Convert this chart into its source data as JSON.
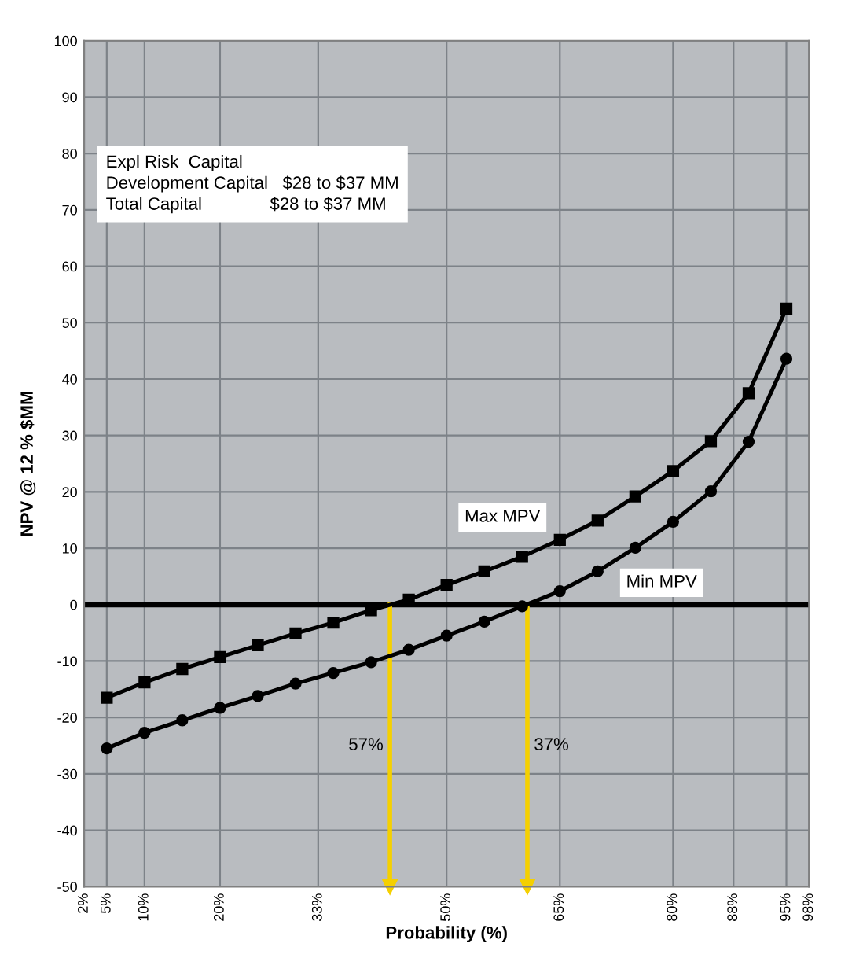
{
  "chart_data": {
    "type": "line",
    "xlabel": "Probability (%)",
    "ylabel": "NPV @ 12 % $MM",
    "xlim": [
      2,
      98
    ],
    "xticks": [
      {
        "value": 2,
        "label": "2%"
      },
      {
        "value": 5,
        "label": "5%"
      },
      {
        "value": 10,
        "label": "10%"
      },
      {
        "value": 20,
        "label": "20%"
      },
      {
        "value": 33,
        "label": "33%"
      },
      {
        "value": 50,
        "label": "50%"
      },
      {
        "value": 65,
        "label": "65%"
      },
      {
        "value": 80,
        "label": "80%"
      },
      {
        "value": 88,
        "label": "88%"
      },
      {
        "value": 95,
        "label": "95%"
      },
      {
        "value": 98,
        "label": "98%"
      }
    ],
    "ylim": [
      -50,
      100
    ],
    "yticks": [
      -50,
      -40,
      -30,
      -20,
      -10,
      0,
      10,
      20,
      30,
      40,
      50,
      60,
      70,
      80,
      90,
      100
    ],
    "grid": true,
    "line_style": "solid",
    "series": [
      {
        "name": "Max MPV",
        "color": "#000000",
        "marker": "square",
        "x": [
          5,
          10,
          15,
          20,
          25,
          30,
          35,
          40,
          45,
          50,
          55,
          60,
          65,
          70,
          75,
          80,
          85,
          90,
          95
        ],
        "values": [
          -16.5,
          -13.8,
          -11.4,
          -9.3,
          -7.2,
          -5.1,
          -3.2,
          -1.0,
          0.9,
          3.5,
          5.9,
          8.5,
          11.5,
          14.9,
          19.2,
          23.7,
          29.0,
          37.5,
          52.5
        ]
      },
      {
        "name": "Min MPV",
        "color": "#000000",
        "marker": "circle",
        "x": [
          5,
          10,
          15,
          20,
          25,
          30,
          35,
          40,
          45,
          50,
          55,
          60,
          65,
          70,
          75,
          80,
          85,
          90,
          95
        ],
        "values": [
          -25.5,
          -22.7,
          -20.5,
          -18.3,
          -16.2,
          -14.0,
          -12.1,
          -10.2,
          -8.0,
          -5.5,
          -3.0,
          -0.3,
          2.4,
          5.9,
          10.1,
          14.7,
          20.1,
          28.9,
          43.6
        ]
      }
    ],
    "ref_lines": [
      {
        "axis": "y",
        "value": 0,
        "color": "#000000",
        "line_style": "solid"
      },
      {
        "axis": "x",
        "value": 42.5,
        "color": "#f5d000"
      },
      {
        "axis": "x",
        "value": 60.7,
        "color": "#f5d000"
      }
    ],
    "annotations": [
      "Expl Risk  Capital\nDevelopment Capital   $28 to $37 MM\nTotal Capital              $28 to $37 MM",
      "57%",
      "37%"
    ]
  }
}
